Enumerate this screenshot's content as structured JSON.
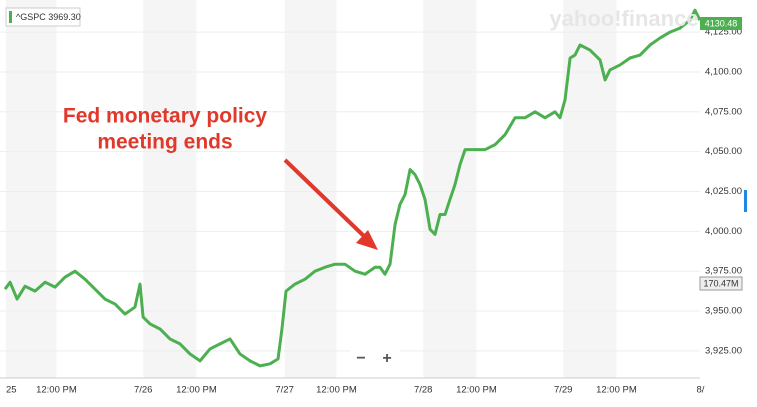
{
  "chart_data": {
    "type": "line",
    "legend_label": "^GSPC 3969.30",
    "watermark": "yahoo!finance",
    "annotation": [
      "Fed monetary policy",
      "meeting ends"
    ],
    "last_price_label": "4130.48",
    "volume_label": "170.47M",
    "zoom_buttons": [
      "−",
      "+"
    ],
    "x": [
      -0.007,
      0.029,
      0.079,
      0.136,
      0.207,
      0.279,
      0.35,
      0.421,
      0.493,
      0.564,
      0.636,
      0.707,
      0.779,
      0.85,
      0.921,
      0.957,
      0.979,
      1.029,
      1.1,
      1.171,
      1.243,
      1.314,
      1.386,
      1.457,
      1.529,
      1.6,
      1.671,
      1.743,
      1.814,
      1.886,
      1.943,
      1.971,
      2.0,
      2.064,
      2.136,
      2.207,
      2.279,
      2.35,
      2.421,
      2.493,
      2.564,
      2.636,
      2.671,
      2.707,
      2.743,
      2.779,
      2.814,
      2.85,
      2.886,
      2.921,
      2.957,
      2.993,
      3.029,
      3.064,
      3.1,
      3.136,
      3.171,
      3.207,
      3.243,
      3.279,
      3.35,
      3.421,
      3.493,
      3.564,
      3.636,
      3.707,
      3.779,
      3.85,
      3.921,
      3.957,
      3.993,
      4.029,
      4.064,
      4.1,
      4.171,
      4.243,
      4.279,
      4.314,
      4.386,
      4.457,
      4.529,
      4.6,
      4.671,
      4.743,
      4.814,
      4.886,
      4.921,
      4.957
    ],
    "series": [
      {
        "name": "^GSPC",
        "color": "#4caf50",
        "values": [
          3963.75,
          3968.1,
          3957.5,
          3965.6,
          3962.5,
          3968.1,
          3965,
          3971.25,
          3975,
          3970,
          3963.75,
          3957.5,
          3954.4,
          3948.1,
          3952.5,
          3966.9,
          3946.25,
          3941.9,
          3938.75,
          3932.5,
          3929.4,
          3923.1,
          3918.75,
          3926.25,
          3929.4,
          3932.5,
          3923.1,
          3918.75,
          3915.6,
          3916.9,
          3920,
          3938.75,
          3962.5,
          3966.9,
          3970,
          3975,
          3977.5,
          3979.4,
          3979.4,
          3975,
          3973.1,
          3977.5,
          3977.5,
          3973.1,
          3979.4,
          4004.4,
          4016.9,
          4023.1,
          4038.75,
          4035.6,
          4029.4,
          4020,
          4001.25,
          3998.1,
          4010.6,
          4010.6,
          4020,
          4029.4,
          4041.9,
          4051.25,
          4051.25,
          4051.25,
          4054.4,
          4060.6,
          4071.25,
          4071.25,
          4075,
          4071.25,
          4075,
          4071.25,
          4082.5,
          4108.75,
          4110.6,
          4116.9,
          4113.75,
          4107.5,
          4095,
          4101.25,
          4104.4,
          4108.75,
          4110.6,
          4116.9,
          4121.25,
          4125,
          4127.5,
          4132.5,
          4138.75,
          4132.5
        ]
      }
    ],
    "xlim": [
      -0.043,
      4.957
    ],
    "xticks": [
      {
        "value": 0,
        "label": "25"
      },
      {
        "value": 0.36,
        "label": "12:00 PM"
      },
      {
        "value": 0.98,
        "label": "7/26"
      },
      {
        "value": 1.36,
        "label": "12:00 PM"
      },
      {
        "value": 1.99,
        "label": "7/27"
      },
      {
        "value": 2.36,
        "label": "12:00 PM"
      },
      {
        "value": 2.98,
        "label": "7/28"
      },
      {
        "value": 3.36,
        "label": "12:00 PM"
      },
      {
        "value": 3.98,
        "label": "7/29"
      },
      {
        "value": 4.36,
        "label": "12:00 PM"
      },
      {
        "value": 4.96,
        "label": "8/"
      }
    ],
    "ylim": [
      3908,
      4142
    ],
    "yticks": [
      {
        "value": 3925,
        "label": "3,925.00"
      },
      {
        "value": 3950,
        "label": "3,950.00"
      },
      {
        "value": 3975,
        "label": "3,975.00"
      },
      {
        "value": 4000,
        "label": "4,000.00"
      },
      {
        "value": 4025,
        "label": "4,025.00"
      },
      {
        "value": 4050,
        "label": "4,050.00"
      },
      {
        "value": 4075,
        "label": "4,075.00"
      },
      {
        "value": 4100,
        "label": "4,100.00"
      },
      {
        "value": 4125,
        "label": "4,125.00"
      }
    ],
    "grid": true
  }
}
